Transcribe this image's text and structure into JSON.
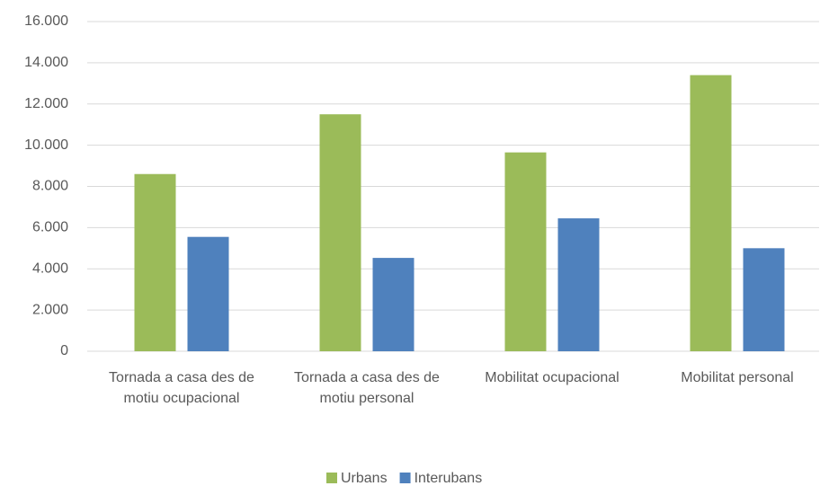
{
  "chart_data": {
    "type": "bar",
    "categories": [
      "Tornada a casa des de motiu ocupacional",
      "Tornada a casa des de motiu personal",
      "Mobilitat ocupacional",
      "Mobilitat personal"
    ],
    "series": [
      {
        "name": "Urbans",
        "color": "#9bbb59",
        "values": [
          8600,
          11500,
          9650,
          13400
        ]
      },
      {
        "name": "Interubans",
        "color": "#4f81bd",
        "values": [
          5550,
          4530,
          6450,
          5000
        ]
      }
    ],
    "ylim": [
      0,
      16000
    ],
    "yticks": [
      0,
      {
        "value": 2000,
        "label": "2.000"
      },
      {
        "value": 4000,
        "label": "4.000"
      },
      {
        "value": 6000,
        "label": "6.000"
      },
      {
        "value": 8000,
        "label": "8.000"
      },
      {
        "value": 10000,
        "label": "10.000"
      },
      {
        "value": 12000,
        "label": "12.000"
      },
      {
        "value": 14000,
        "label": "14.000"
      },
      {
        "value": 16000,
        "label": "16.000"
      }
    ],
    "grid": true,
    "legend": "bottom"
  }
}
